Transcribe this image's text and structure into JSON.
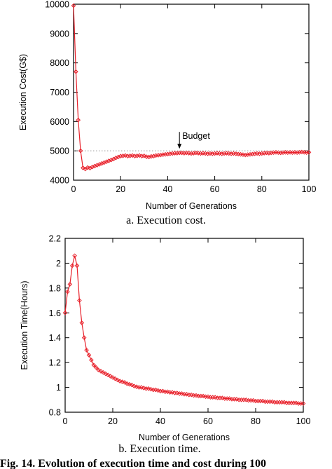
{
  "chart_data": [
    {
      "type": "line",
      "xlabel": "Number of Generations",
      "ylabel": "Execution Cost(G$)",
      "caption": "a. Execution cost.",
      "xlim": [
        0,
        100
      ],
      "ylim": [
        4000,
        10000
      ],
      "xticks": [
        0,
        20,
        40,
        60,
        80,
        100
      ],
      "yticks": [
        4000,
        5000,
        6000,
        7000,
        8000,
        9000,
        10000
      ],
      "grid": false,
      "color": "#e8202a",
      "marker": "diamond",
      "annotation": {
        "text": "Budget",
        "x": 45,
        "y": 5000
      },
      "budget_value": 5000,
      "x": [
        0,
        1,
        2,
        3,
        4,
        5,
        6,
        7,
        8,
        9,
        10,
        11,
        12,
        13,
        14,
        15,
        16,
        17,
        18,
        19,
        20,
        21,
        22,
        23,
        24,
        25,
        26,
        27,
        28,
        29,
        30,
        31,
        32,
        33,
        34,
        35,
        36,
        37,
        38,
        39,
        40,
        41,
        42,
        43,
        44,
        45,
        46,
        47,
        48,
        49,
        50,
        51,
        52,
        53,
        54,
        55,
        56,
        57,
        58,
        59,
        60,
        61,
        62,
        63,
        64,
        65,
        66,
        67,
        68,
        69,
        70,
        71,
        72,
        73,
        74,
        75,
        76,
        77,
        78,
        79,
        80,
        81,
        82,
        83,
        84,
        85,
        86,
        87,
        88,
        89,
        90,
        91,
        92,
        93,
        94,
        95,
        96,
        97,
        98,
        99,
        100
      ],
      "y": [
        9950,
        7700,
        6050,
        5000,
        4420,
        4380,
        4430,
        4410,
        4450,
        4480,
        4510,
        4540,
        4570,
        4600,
        4630,
        4660,
        4690,
        4720,
        4760,
        4790,
        4820,
        4830,
        4840,
        4820,
        4830,
        4840,
        4820,
        4830,
        4840,
        4820,
        4830,
        4800,
        4790,
        4810,
        4820,
        4840,
        4850,
        4860,
        4870,
        4880,
        4890,
        4900,
        4910,
        4920,
        4920,
        4930,
        4930,
        4920,
        4930,
        4920,
        4910,
        4920,
        4930,
        4920,
        4910,
        4920,
        4910,
        4900,
        4910,
        4900,
        4910,
        4920,
        4910,
        4900,
        4910,
        4920,
        4910,
        4900,
        4910,
        4900,
        4890,
        4880,
        4870,
        4860,
        4870,
        4880,
        4890,
        4900,
        4910,
        4900,
        4910,
        4920,
        4930,
        4920,
        4930,
        4940,
        4950,
        4940,
        4930,
        4940,
        4950,
        4940,
        4950,
        4940,
        4950,
        4940,
        4950,
        4960,
        4950,
        4940,
        4950
      ]
    },
    {
      "type": "line",
      "xlabel": "Number of Generations",
      "ylabel": "Execution Time(Hours)",
      "caption": "b. Execution time.",
      "xlim": [
        0,
        100
      ],
      "ylim": [
        0.8,
        2.2
      ],
      "xticks": [
        0,
        20,
        40,
        60,
        80,
        100
      ],
      "yticks": [
        0.8,
        1,
        1.2,
        1.4,
        1.6,
        1.8,
        2,
        2.2
      ],
      "grid": false,
      "color": "#e8202a",
      "marker": "diamond",
      "x": [
        0,
        1,
        2,
        3,
        4,
        5,
        6,
        7,
        8,
        9,
        10,
        11,
        12,
        13,
        14,
        15,
        16,
        17,
        18,
        19,
        20,
        21,
        22,
        23,
        24,
        25,
        26,
        27,
        28,
        29,
        30,
        31,
        32,
        33,
        34,
        35,
        36,
        37,
        38,
        39,
        40,
        41,
        42,
        43,
        44,
        45,
        46,
        47,
        48,
        49,
        50,
        51,
        52,
        53,
        54,
        55,
        56,
        57,
        58,
        59,
        60,
        61,
        62,
        63,
        64,
        65,
        66,
        67,
        68,
        69,
        70,
        71,
        72,
        73,
        74,
        75,
        76,
        77,
        78,
        79,
        80,
        81,
        82,
        83,
        84,
        85,
        86,
        87,
        88,
        89,
        90,
        91,
        92,
        93,
        94,
        95,
        96,
        97,
        98,
        99,
        100
      ],
      "y": [
        1.6,
        1.77,
        1.83,
        1.98,
        2.06,
        1.98,
        1.7,
        1.52,
        1.4,
        1.3,
        1.26,
        1.22,
        1.18,
        1.16,
        1.14,
        1.13,
        1.12,
        1.11,
        1.1,
        1.09,
        1.08,
        1.07,
        1.06,
        1.05,
        1.045,
        1.04,
        1.03,
        1.025,
        1.02,
        1.01,
        1.005,
        1.0,
        1.0,
        0.995,
        0.99,
        0.99,
        0.985,
        0.98,
        0.98,
        0.975,
        0.97,
        0.97,
        0.965,
        0.965,
        0.96,
        0.96,
        0.955,
        0.955,
        0.95,
        0.95,
        0.945,
        0.945,
        0.94,
        0.94,
        0.935,
        0.935,
        0.93,
        0.93,
        0.93,
        0.925,
        0.925,
        0.92,
        0.92,
        0.92,
        0.915,
        0.915,
        0.915,
        0.91,
        0.91,
        0.91,
        0.905,
        0.905,
        0.905,
        0.9,
        0.9,
        0.9,
        0.9,
        0.895,
        0.895,
        0.895,
        0.89,
        0.89,
        0.89,
        0.89,
        0.885,
        0.885,
        0.885,
        0.885,
        0.88,
        0.88,
        0.88,
        0.88,
        0.88,
        0.875,
        0.875,
        0.875,
        0.875,
        0.875,
        0.87,
        0.87,
        0.87
      ]
    }
  ],
  "figure_caption": "Fig. 14. Evolution of execution time and cost during 100"
}
